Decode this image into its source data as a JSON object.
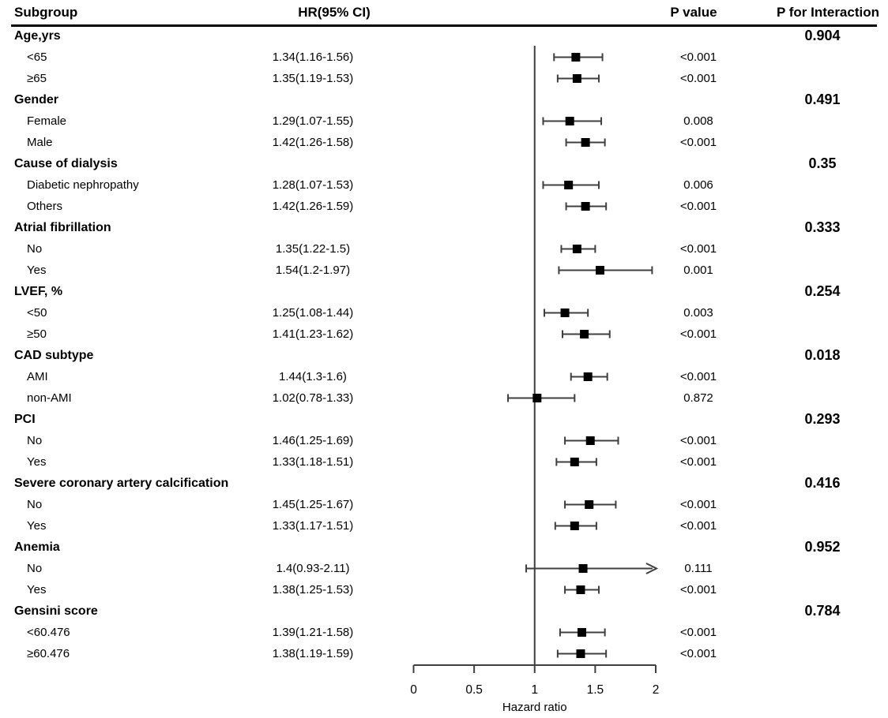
{
  "header": {
    "subgroup": "Subgroup",
    "hr_ci": "HR(95% CI)",
    "p_value": "P value",
    "p_interaction": "P for Interaction"
  },
  "colors": {
    "text": "#000000",
    "line": "#3f3f3f",
    "marker": "#000000",
    "divider": "#000000"
  },
  "chart_data": {
    "type": "forest",
    "xlabel": "Hazard ratio",
    "xlim": [
      0,
      2
    ],
    "x_ticks": [
      0,
      0.5,
      1,
      1.5,
      2
    ],
    "ref_line": 1,
    "groups": [
      {
        "label": "Age,yrs",
        "p_interaction": "0.904",
        "items": [
          {
            "label": "<65",
            "hr_text": "1.34(1.16-1.56)",
            "hr": 1.34,
            "lo": 1.16,
            "hi": 1.56,
            "p": "<0.001"
          },
          {
            "label": "≥65",
            "hr_text": "1.35(1.19-1.53)",
            "hr": 1.35,
            "lo": 1.19,
            "hi": 1.53,
            "p": "<0.001"
          }
        ]
      },
      {
        "label": "Gender",
        "p_interaction": "0.491",
        "items": [
          {
            "label": "Female",
            "hr_text": "1.29(1.07-1.55)",
            "hr": 1.29,
            "lo": 1.07,
            "hi": 1.55,
            "p": "0.008"
          },
          {
            "label": "Male",
            "hr_text": "1.42(1.26-1.58)",
            "hr": 1.42,
            "lo": 1.26,
            "hi": 1.58,
            "p": "<0.001"
          }
        ]
      },
      {
        "label": "Cause of dialysis",
        "p_interaction": "0.35",
        "items": [
          {
            "label": "Diabetic nephropathy",
            "hr_text": "1.28(1.07-1.53)",
            "hr": 1.28,
            "lo": 1.07,
            "hi": 1.53,
            "p": "0.006"
          },
          {
            "label": "Others",
            "hr_text": "1.42(1.26-1.59)",
            "hr": 1.42,
            "lo": 1.26,
            "hi": 1.59,
            "p": "<0.001"
          }
        ]
      },
      {
        "label": "Atrial fibrillation",
        "p_interaction": "0.333",
        "items": [
          {
            "label": "No",
            "hr_text": "1.35(1.22-1.5)",
            "hr": 1.35,
            "lo": 1.22,
            "hi": 1.5,
            "p": "<0.001"
          },
          {
            "label": "Yes",
            "hr_text": "1.54(1.2-1.97)",
            "hr": 1.54,
            "lo": 1.2,
            "hi": 1.97,
            "p": "0.001"
          }
        ]
      },
      {
        "label": "LVEF, %",
        "p_interaction": "0.254",
        "items": [
          {
            "label": "<50",
            "hr_text": "1.25(1.08-1.44)",
            "hr": 1.25,
            "lo": 1.08,
            "hi": 1.44,
            "p": "0.003"
          },
          {
            "label": "≥50",
            "hr_text": "1.41(1.23-1.62)",
            "hr": 1.41,
            "lo": 1.23,
            "hi": 1.62,
            "p": "<0.001"
          }
        ]
      },
      {
        "label": "CAD subtype",
        "p_interaction": "0.018",
        "items": [
          {
            "label": "AMI",
            "hr_text": "1.44(1.3-1.6)",
            "hr": 1.44,
            "lo": 1.3,
            "hi": 1.6,
            "p": "<0.001"
          },
          {
            "label": "non-AMI",
            "hr_text": "1.02(0.78-1.33)",
            "hr": 1.02,
            "lo": 0.78,
            "hi": 1.33,
            "p": "0.872"
          }
        ]
      },
      {
        "label": "PCI",
        "p_interaction": "0.293",
        "items": [
          {
            "label": "No",
            "hr_text": "1.46(1.25-1.69)",
            "hr": 1.46,
            "lo": 1.25,
            "hi": 1.69,
            "p": "<0.001"
          },
          {
            "label": "Yes",
            "hr_text": "1.33(1.18-1.51)",
            "hr": 1.33,
            "lo": 1.18,
            "hi": 1.51,
            "p": "<0.001"
          }
        ]
      },
      {
        "label": "Severe coronary artery calcification",
        "p_interaction": "0.416",
        "items": [
          {
            "label": "No",
            "hr_text": "1.45(1.25-1.67)",
            "hr": 1.45,
            "lo": 1.25,
            "hi": 1.67,
            "p": "<0.001"
          },
          {
            "label": "Yes",
            "hr_text": "1.33(1.17-1.51)",
            "hr": 1.33,
            "lo": 1.17,
            "hi": 1.51,
            "p": "<0.001"
          }
        ]
      },
      {
        "label": "Anemia",
        "p_interaction": "0.952",
        "items": [
          {
            "label": "No",
            "hr_text": "1.4(0.93-2.11)",
            "hr": 1.4,
            "lo": 0.93,
            "hi": 2.11,
            "p": "0.111"
          },
          {
            "label": "Yes",
            "hr_text": "1.38(1.25-1.53)",
            "hr": 1.38,
            "lo": 1.25,
            "hi": 1.53,
            "p": "<0.001"
          }
        ]
      },
      {
        "label": "Gensini score",
        "p_interaction": "0.784",
        "items": [
          {
            "label": "<60.476",
            "hr_text": "1.39(1.21-1.58)",
            "hr": 1.39,
            "lo": 1.21,
            "hi": 1.58,
            "p": "<0.001"
          },
          {
            "label": "≥60.476",
            "hr_text": "1.38(1.19-1.59)",
            "hr": 1.38,
            "lo": 1.19,
            "hi": 1.59,
            "p": "<0.001"
          }
        ]
      }
    ]
  }
}
